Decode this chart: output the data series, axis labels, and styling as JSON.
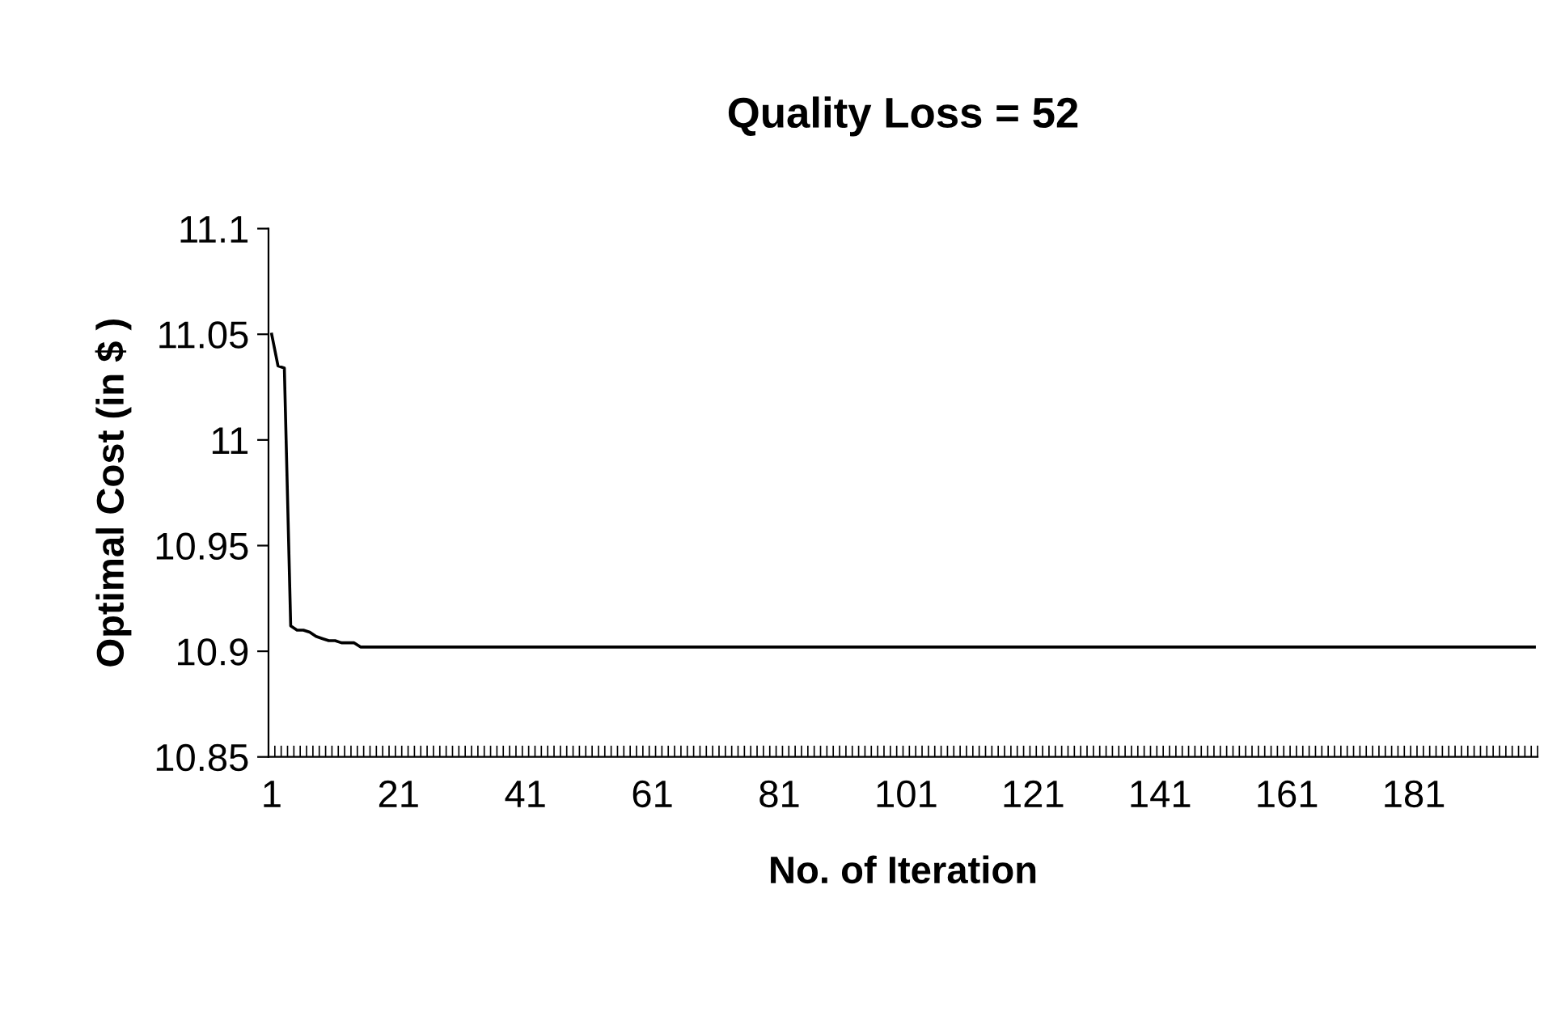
{
  "chart_data": {
    "type": "line",
    "title": "Quality Loss = 52",
    "xlabel": "No. of Iteration",
    "ylabel": "Optimal Cost (in $ )",
    "x": [
      1,
      2,
      3,
      4,
      5,
      6,
      7,
      8,
      9,
      10,
      11,
      12,
      13,
      14,
      15,
      16,
      17,
      18,
      19,
      20,
      21,
      22,
      23,
      24,
      25,
      26,
      27,
      28,
      29,
      30,
      31,
      32,
      33,
      34,
      35,
      36,
      37,
      38,
      39,
      40,
      41,
      42,
      43,
      44,
      45,
      46,
      47,
      48,
      49,
      50,
      51,
      52,
      53,
      54,
      55,
      56,
      57,
      58,
      59,
      60,
      61,
      62,
      63,
      64,
      65,
      66,
      67,
      68,
      69,
      70,
      71,
      72,
      73,
      74,
      75,
      76,
      77,
      78,
      79,
      80,
      81,
      82,
      83,
      84,
      85,
      86,
      87,
      88,
      89,
      90,
      91,
      92,
      93,
      94,
      95,
      96,
      97,
      98,
      99,
      100,
      101,
      102,
      103,
      104,
      105,
      106,
      107,
      108,
      109,
      110,
      111,
      112,
      113,
      114,
      115,
      116,
      117,
      118,
      119,
      120,
      121,
      122,
      123,
      124,
      125,
      126,
      127,
      128,
      129,
      130,
      131,
      132,
      133,
      134,
      135,
      136,
      137,
      138,
      139,
      140,
      141,
      142,
      143,
      144,
      145,
      146,
      147,
      148,
      149,
      150,
      151,
      152,
      153,
      154,
      155,
      156,
      157,
      158,
      159,
      160,
      161,
      162,
      163,
      164,
      165,
      166,
      167,
      168,
      169,
      170,
      171,
      172,
      173,
      174,
      175,
      176,
      177,
      178,
      179,
      180,
      181,
      182,
      183,
      184,
      185,
      186,
      187,
      188,
      189,
      190,
      191,
      192,
      193,
      194,
      195,
      196,
      197,
      198,
      199,
      200
    ],
    "values": [
      11.05,
      11.035,
      11.034,
      10.912,
      10.91,
      10.91,
      10.909,
      10.907,
      10.906,
      10.905,
      10.905,
      10.904,
      10.904,
      10.904,
      10.902,
      10.902,
      10.902,
      10.902,
      10.902,
      10.902,
      10.902,
      10.902,
      10.902,
      10.902,
      10.902,
      10.902,
      10.902,
      10.902,
      10.902,
      10.902,
      10.902,
      10.902,
      10.902,
      10.902,
      10.902,
      10.902,
      10.902,
      10.902,
      10.902,
      10.902,
      10.902,
      10.902,
      10.902,
      10.902,
      10.902,
      10.902,
      10.902,
      10.902,
      10.902,
      10.902,
      10.902,
      10.902,
      10.902,
      10.902,
      10.902,
      10.902,
      10.902,
      10.902,
      10.902,
      10.902,
      10.902,
      10.902,
      10.902,
      10.902,
      10.902,
      10.902,
      10.902,
      10.902,
      10.902,
      10.902,
      10.902,
      10.902,
      10.902,
      10.902,
      10.902,
      10.902,
      10.902,
      10.902,
      10.902,
      10.902,
      10.902,
      10.902,
      10.902,
      10.902,
      10.902,
      10.902,
      10.902,
      10.902,
      10.902,
      10.902,
      10.902,
      10.902,
      10.902,
      10.902,
      10.902,
      10.902,
      10.902,
      10.902,
      10.902,
      10.902,
      10.902,
      10.902,
      10.902,
      10.902,
      10.902,
      10.902,
      10.902,
      10.902,
      10.902,
      10.902,
      10.902,
      10.902,
      10.902,
      10.902,
      10.902,
      10.902,
      10.902,
      10.902,
      10.902,
      10.902,
      10.902,
      10.902,
      10.902,
      10.902,
      10.902,
      10.902,
      10.902,
      10.902,
      10.902,
      10.902,
      10.902,
      10.902,
      10.902,
      10.902,
      10.902,
      10.902,
      10.902,
      10.902,
      10.902,
      10.902,
      10.902,
      10.902,
      10.902,
      10.902,
      10.902,
      10.902,
      10.902,
      10.902,
      10.902,
      10.902,
      10.902,
      10.902,
      10.902,
      10.902,
      10.902,
      10.902,
      10.902,
      10.902,
      10.902,
      10.902,
      10.902,
      10.902,
      10.902,
      10.902,
      10.902,
      10.902,
      10.902,
      10.902,
      10.902,
      10.902,
      10.902,
      10.902,
      10.902,
      10.902,
      10.902,
      10.902,
      10.902,
      10.902,
      10.902,
      10.902,
      10.902,
      10.902,
      10.902,
      10.902,
      10.902,
      10.902,
      10.902,
      10.902,
      10.902,
      10.902,
      10.902,
      10.902,
      10.902,
      10.902,
      10.902,
      10.902,
      10.902,
      10.902,
      10.902,
      10.902
    ],
    "color": "#000000",
    "marker": "none",
    "line_style": "solid",
    "xlim": [
      0.5,
      200.5
    ],
    "xticks": [
      1,
      21,
      41,
      61,
      81,
      101,
      121,
      141,
      161,
      181
    ],
    "ylim": [
      10.85,
      11.1
    ],
    "yticks": [
      10.85,
      10.9,
      10.95,
      11,
      11.05,
      11.1
    ],
    "grid": false,
    "legend": false
  }
}
